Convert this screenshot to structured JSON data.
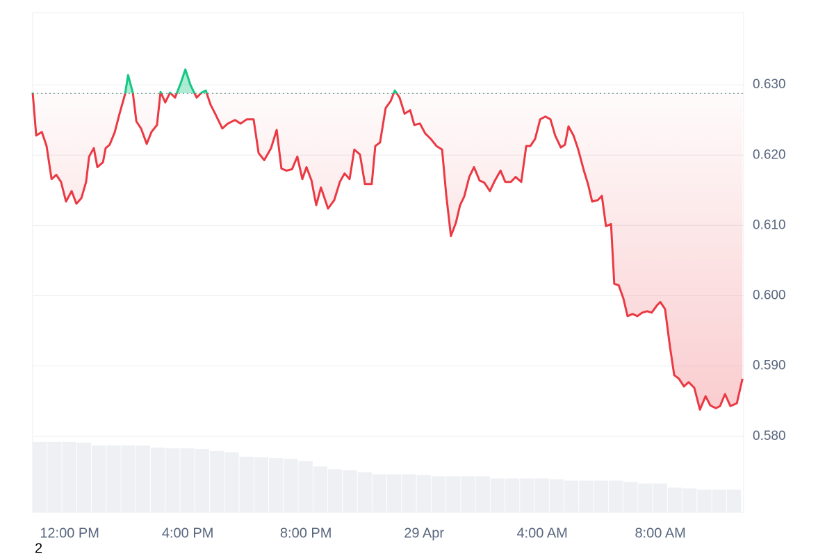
{
  "chart_data": {
    "type": "line",
    "x": [
      10.75,
      10.87,
      11.06,
      11.22,
      11.39,
      11.55,
      11.71,
      11.88,
      12.07,
      12.23,
      12.4,
      12.56,
      12.66,
      12.82,
      12.94,
      13.13,
      13.22,
      13.36,
      13.53,
      13.69,
      13.88,
      13.98,
      14.14,
      14.26,
      14.42,
      14.61,
      14.77,
      14.96,
      15.08,
      15.24,
      15.4,
      15.57,
      15.76,
      15.92,
      16.09,
      16.3,
      16.47,
      16.61,
      16.77,
      16.94,
      17.17,
      17.36,
      17.6,
      17.79,
      18.0,
      18.23,
      18.4,
      18.59,
      18.82,
      19.01,
      19.17,
      19.34,
      19.53,
      19.71,
      19.88,
      20.02,
      20.19,
      20.35,
      20.51,
      20.75,
      20.96,
      21.15,
      21.31,
      21.48,
      21.64,
      21.83,
      22.0,
      22.23,
      22.35,
      22.51,
      22.7,
      22.87,
      23.01,
      23.17,
      23.34,
      23.53,
      23.67,
      23.86,
      24.04,
      24.23,
      24.42,
      24.61,
      24.75,
      24.91,
      25.08,
      25.22,
      25.36,
      25.53,
      25.69,
      25.88,
      26.04,
      26.23,
      26.4,
      26.59,
      26.75,
      26.94,
      27.1,
      27.29,
      27.46,
      27.6,
      27.76,
      27.93,
      28.11,
      28.28,
      28.44,
      28.63,
      28.77,
      28.89,
      29.06,
      29.22,
      29.41,
      29.55,
      29.69,
      29.88,
      30.02,
      30.16,
      30.33,
      30.44,
      30.59,
      30.75,
      30.89,
      31.06,
      31.22,
      31.39,
      31.55,
      31.71,
      31.88,
      32.0,
      32.16,
      32.33,
      32.47,
      32.63,
      32.8,
      32.96,
      33.15,
      33.34,
      33.53,
      33.69,
      33.88,
      34.02,
      34.19,
      34.37,
      34.59,
      34.78
    ],
    "values": [
      0.6289,
      0.6228,
      0.6233,
      0.6213,
      0.6166,
      0.6172,
      0.6162,
      0.6134,
      0.6149,
      0.6131,
      0.6139,
      0.6162,
      0.6198,
      0.621,
      0.6183,
      0.619,
      0.621,
      0.6215,
      0.6233,
      0.6259,
      0.6287,
      0.6314,
      0.6289,
      0.6248,
      0.6238,
      0.6216,
      0.6233,
      0.6243,
      0.629,
      0.6275,
      0.6289,
      0.6282,
      0.6302,
      0.6322,
      0.63,
      0.6282,
      0.6289,
      0.6292,
      0.6272,
      0.6258,
      0.6238,
      0.6245,
      0.625,
      0.6245,
      0.6251,
      0.6251,
      0.6203,
      0.6193,
      0.621,
      0.6236,
      0.6181,
      0.6178,
      0.618,
      0.6198,
      0.6166,
      0.6183,
      0.6164,
      0.6129,
      0.6154,
      0.6124,
      0.6136,
      0.6162,
      0.6174,
      0.6166,
      0.6208,
      0.6201,
      0.6159,
      0.6159,
      0.6213,
      0.6218,
      0.6267,
      0.6277,
      0.6292,
      0.6282,
      0.6259,
      0.6264,
      0.6243,
      0.6245,
      0.6231,
      0.6223,
      0.6213,
      0.6208,
      0.6144,
      0.6085,
      0.6104,
      0.6129,
      0.6141,
      0.6169,
      0.6183,
      0.6164,
      0.6161,
      0.6149,
      0.6164,
      0.6178,
      0.6162,
      0.6162,
      0.6169,
      0.6162,
      0.6213,
      0.6213,
      0.6223,
      0.6251,
      0.6255,
      0.6251,
      0.6228,
      0.6211,
      0.6215,
      0.6241,
      0.6228,
      0.6208,
      0.6178,
      0.6159,
      0.6134,
      0.6136,
      0.6142,
      0.6099,
      0.6102,
      0.6017,
      0.6015,
      0.5996,
      0.5971,
      0.5974,
      0.5971,
      0.5976,
      0.5978,
      0.5976,
      0.5986,
      0.5991,
      0.5981,
      0.5926,
      0.5887,
      0.5882,
      0.5871,
      0.5877,
      0.5869,
      0.5838,
      0.5857,
      0.5844,
      0.584,
      0.5843,
      0.586,
      0.5843,
      0.5847,
      0.5882
    ],
    "baseline": 0.6288,
    "colors": {
      "above": "#16c784",
      "below": "#ea3943"
    },
    "volume": {
      "color": "#eef0f4",
      "x": [
        10.75,
        11.25,
        11.75,
        12.25,
        12.75,
        13.25,
        13.75,
        14.25,
        14.75,
        15.25,
        15.75,
        16.25,
        16.75,
        17.25,
        17.75,
        18.25,
        18.75,
        19.25,
        19.75,
        20.25,
        20.75,
        21.25,
        21.75,
        22.25,
        22.75,
        23.25,
        23.75,
        24.25,
        24.75,
        25.25,
        25.75,
        26.25,
        26.75,
        27.25,
        27.75,
        28.25,
        28.75,
        29.25,
        29.75,
        30.25,
        30.75,
        31.25,
        31.75,
        32.25,
        32.75,
        33.25,
        33.75,
        34.25
      ],
      "values": [
        0.5792,
        0.5792,
        0.5792,
        0.5791,
        0.5787,
        0.5787,
        0.5787,
        0.5787,
        0.5784,
        0.5783,
        0.5783,
        0.5782,
        0.5779,
        0.5777,
        0.5771,
        0.577,
        0.5769,
        0.5768,
        0.5765,
        0.5757,
        0.5753,
        0.5752,
        0.5749,
        0.5746,
        0.5746,
        0.5746,
        0.5745,
        0.5743,
        0.5743,
        0.5743,
        0.5743,
        0.574,
        0.574,
        0.574,
        0.574,
        0.5739,
        0.5737,
        0.5737,
        0.5737,
        0.5737,
        0.5735,
        0.5733,
        0.5733,
        0.5727,
        0.5726,
        0.5724,
        0.5724,
        0.5724
      ]
    },
    "xlim": [
      10.75,
      34.82
    ],
    "ylim": [
      0.5692,
      0.6403
    ],
    "xticks": [
      {
        "value": 12,
        "label": "12:00 PM"
      },
      {
        "value": 16,
        "label": "4:00 PM"
      },
      {
        "value": 20,
        "label": "8:00 PM"
      },
      {
        "value": 24,
        "label": "29 Apr"
      },
      {
        "value": 28,
        "label": "4:00 AM"
      },
      {
        "value": 32,
        "label": "8:00 AM"
      }
    ],
    "yticks": [
      {
        "value": 0.58,
        "label": "0.580"
      },
      {
        "value": 0.59,
        "label": "0.590"
      },
      {
        "value": 0.6,
        "label": "0.600"
      },
      {
        "value": 0.61,
        "label": "0.610"
      },
      {
        "value": 0.62,
        "label": "0.620"
      },
      {
        "value": 0.63,
        "label": "0.630"
      }
    ],
    "grid": true,
    "note": "2"
  }
}
